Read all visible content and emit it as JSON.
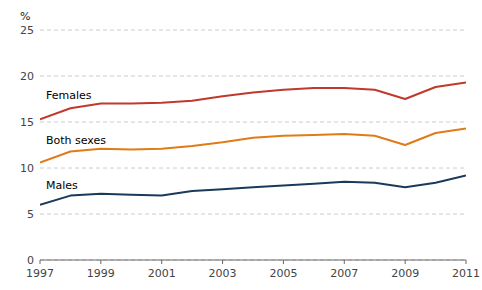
{
  "chart_data": {
    "type": "line",
    "x": [
      1997,
      1998,
      1999,
      2000,
      2001,
      2002,
      2003,
      2004,
      2005,
      2006,
      2007,
      2008,
      2009,
      2010,
      2011
    ],
    "series": [
      {
        "name": "Females",
        "color": "#c0392b",
        "values": [
          15.3,
          16.5,
          17.0,
          17.0,
          17.1,
          17.3,
          17.8,
          18.2,
          18.5,
          18.7,
          18.7,
          18.5,
          17.5,
          18.8,
          19.3
        ]
      },
      {
        "name": "Both sexes",
        "color": "#e07b18",
        "values": [
          10.6,
          11.8,
          12.1,
          12.0,
          12.1,
          12.4,
          12.8,
          13.3,
          13.5,
          13.6,
          13.7,
          13.5,
          12.5,
          13.8,
          14.3
        ]
      },
      {
        "name": "Males",
        "color": "#1a3a5c",
        "values": [
          6.0,
          7.0,
          7.2,
          7.1,
          7.0,
          7.5,
          7.7,
          7.9,
          8.1,
          8.3,
          8.5,
          8.4,
          7.9,
          8.4,
          9.2
        ]
      }
    ],
    "y_label": "%",
    "xlim": [
      1997,
      2011
    ],
    "xticks": [
      1997,
      1999,
      2001,
      2003,
      2005,
      2007,
      2009,
      2011
    ],
    "ylim": [
      0,
      25
    ],
    "yticks": [
      0,
      5,
      10,
      15,
      20,
      25
    ],
    "grid": true
  }
}
